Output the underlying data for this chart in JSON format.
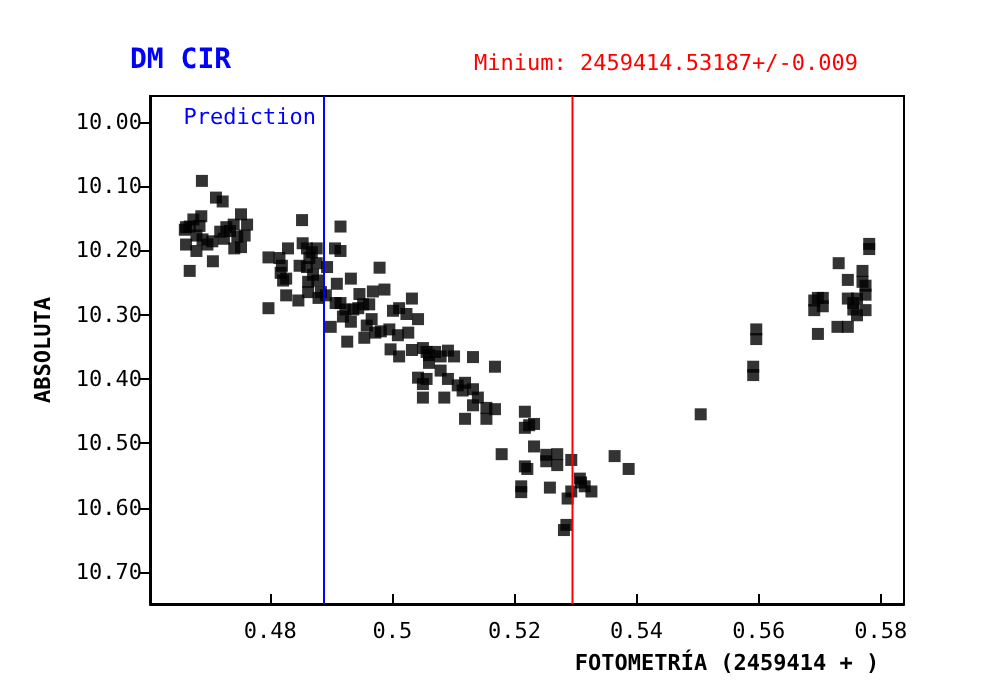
{
  "chart_data": {
    "type": "scatter",
    "title": "DM CIR",
    "xlabel": "FOTOMETRÍA (2459414 + )",
    "ylabel": "ABSOLUTA",
    "xlim": [
      0.4603,
      0.5838
    ],
    "xticks": [
      0.48,
      0.5,
      0.52,
      0.54,
      0.56,
      0.58
    ],
    "ylim": [
      10.75,
      9.96
    ],
    "yticks": [
      {
        "value": 10,
        "label": "10.00"
      },
      {
        "value": 10.1,
        "label": "10.10"
      },
      {
        "value": 10.2,
        "label": "10.20"
      },
      {
        "value": 10.3,
        "label": "10.30"
      },
      {
        "value": 10.4,
        "label": "10.40"
      },
      {
        "value": 10.5,
        "label": "10.50"
      },
      {
        "value": 10.6,
        "label": "10.60"
      },
      {
        "value": 10.7,
        "label": "10.70"
      }
    ],
    "grid": false,
    "marker": "square",
    "annotations": [
      "Minium: 2459414.53187+/-0.009"
    ],
    "ref_lines": [
      {
        "axis": "x",
        "value": 0.4888,
        "label": "Prediction",
        "color": "#0000ff"
      },
      {
        "axis": "x",
        "value": 0.5295,
        "color": "#ff0000"
      }
    ],
    "series": [
      {
        "color": "#000000",
        "x": [
          0.4688,
          0.4711,
          0.4722,
          0.4662,
          0.4674,
          0.4687,
          0.466,
          0.4668,
          0.4684,
          0.4679,
          0.4689,
          0.4662,
          0.4697,
          0.4705,
          0.4679,
          0.4668,
          0.4706,
          0.4718,
          0.4724,
          0.4728,
          0.4734,
          0.474,
          0.4746,
          0.4752,
          0.4758,
          0.4762,
          0.4741,
          0.4752,
          0.4797,
          0.4797,
          0.4815,
          0.4819,
          0.4817,
          0.4821,
          0.4826,
          0.4826,
          0.4829,
          0.4846,
          0.4848,
          0.4852,
          0.4853,
          0.486,
          0.486,
          0.4862,
          0.4862,
          0.4864,
          0.4868,
          0.487,
          0.4876,
          0.4876,
          0.4877,
          0.4879,
          0.4883,
          0.4891,
          0.4893,
          0.4899,
          0.4906,
          0.4909,
          0.4915,
          0.4915,
          0.4907,
          0.4915,
          0.4919,
          0.4926,
          0.4923,
          0.4932,
          0.4932,
          0.4936,
          0.4944,
          0.4946,
          0.4952,
          0.4954,
          0.4958,
          0.4962,
          0.4966,
          0.4968,
          0.4972,
          0.4979,
          0.4981,
          0.4987,
          0.4995,
          0.4997,
          0.5001,
          0.5009,
          0.5011,
          0.5011,
          0.5023,
          0.5026,
          0.5032,
          0.5032,
          0.5042,
          0.5042,
          0.505,
          0.505,
          0.505,
          0.5056,
          0.5056,
          0.506,
          0.506,
          0.507,
          0.5079,
          0.5079,
          0.5085,
          0.5091,
          0.5091,
          0.5101,
          0.5107,
          0.5115,
          0.5119,
          0.5119,
          0.5132,
          0.5132,
          0.5132,
          0.514,
          0.5154,
          0.5154,
          0.5168,
          0.5168,
          0.5179,
          0.5217,
          0.5217,
          0.5224,
          0.5232,
          0.5232,
          0.5217,
          0.5221,
          0.5211,
          0.5211,
          0.5252,
          0.5252,
          0.5258,
          0.527,
          0.527,
          0.5281,
          0.5285,
          0.5287,
          0.5293,
          0.5293,
          0.5307,
          0.5309,
          0.5315,
          0.5326,
          0.5364,
          0.5387,
          0.5505,
          0.5591,
          0.5591,
          0.5596,
          0.5596,
          0.5691,
          0.5691,
          0.5697,
          0.5697,
          0.5705,
          0.5705,
          0.5729,
          0.5731,
          0.5746,
          0.5746,
          0.5746,
          0.5755,
          0.5755,
          0.5761,
          0.5761,
          0.577,
          0.577,
          0.5775,
          0.5775,
          0.5775,
          0.5781,
          0.5781
        ],
        "values": [
          10.092,
          10.118,
          10.124,
          10.164,
          10.152,
          10.147,
          10.168,
          10.163,
          10.162,
          10.177,
          10.183,
          10.191,
          10.191,
          10.186,
          10.201,
          10.232,
          10.217,
          10.171,
          10.182,
          10.164,
          10.17,
          10.16,
          10.179,
          10.144,
          10.177,
          10.16,
          10.197,
          10.195,
          10.211,
          10.29,
          10.212,
          10.224,
          10.235,
          10.247,
          10.244,
          10.27,
          10.197,
          10.278,
          10.224,
          10.153,
          10.189,
          10.197,
          10.226,
          10.249,
          10.265,
          10.212,
          10.203,
          10.238,
          10.22,
          10.197,
          10.247,
          10.274,
          10.265,
          10.27,
          10.226,
          10.319,
          10.197,
          10.252,
          10.163,
          10.201,
          10.282,
          10.282,
          10.303,
          10.342,
          10.292,
          10.244,
          10.311,
          10.292,
          10.29,
          10.268,
          10.284,
          10.336,
          10.317,
          10.284,
          10.307,
          10.264,
          10.328,
          10.227,
          10.326,
          10.261,
          10.323,
          10.354,
          10.294,
          10.332,
          10.29,
          10.365,
          10.299,
          10.328,
          10.275,
          10.355,
          10.307,
          10.398,
          10.352,
          10.408,
          10.429,
          10.358,
          10.4,
          10.363,
          10.375,
          10.358,
          10.365,
          10.387,
          10.429,
          10.356,
          10.4,
          10.365,
          10.41,
          10.418,
          10.406,
          10.462,
          10.366,
          10.416,
          10.441,
          10.429,
          10.445,
          10.462,
          10.381,
          10.447,
          10.517,
          10.451,
          10.476,
          10.472,
          10.47,
          10.505,
          10.536,
          10.54,
          10.567,
          10.576,
          10.518,
          10.528,
          10.569,
          10.517,
          10.534,
          10.635,
          10.627,
          10.586,
          10.575,
          10.526,
          10.555,
          10.561,
          10.567,
          10.575,
          10.52,
          10.54,
          10.455,
          10.381,
          10.394,
          10.323,
          10.338,
          10.278,
          10.293,
          10.274,
          10.33,
          10.274,
          10.287,
          10.319,
          10.22,
          10.246,
          10.275,
          10.319,
          10.282,
          10.292,
          10.275,
          10.301,
          10.232,
          10.249,
          10.255,
          10.269,
          10.293,
          10.19,
          10.198
        ]
      }
    ]
  }
}
